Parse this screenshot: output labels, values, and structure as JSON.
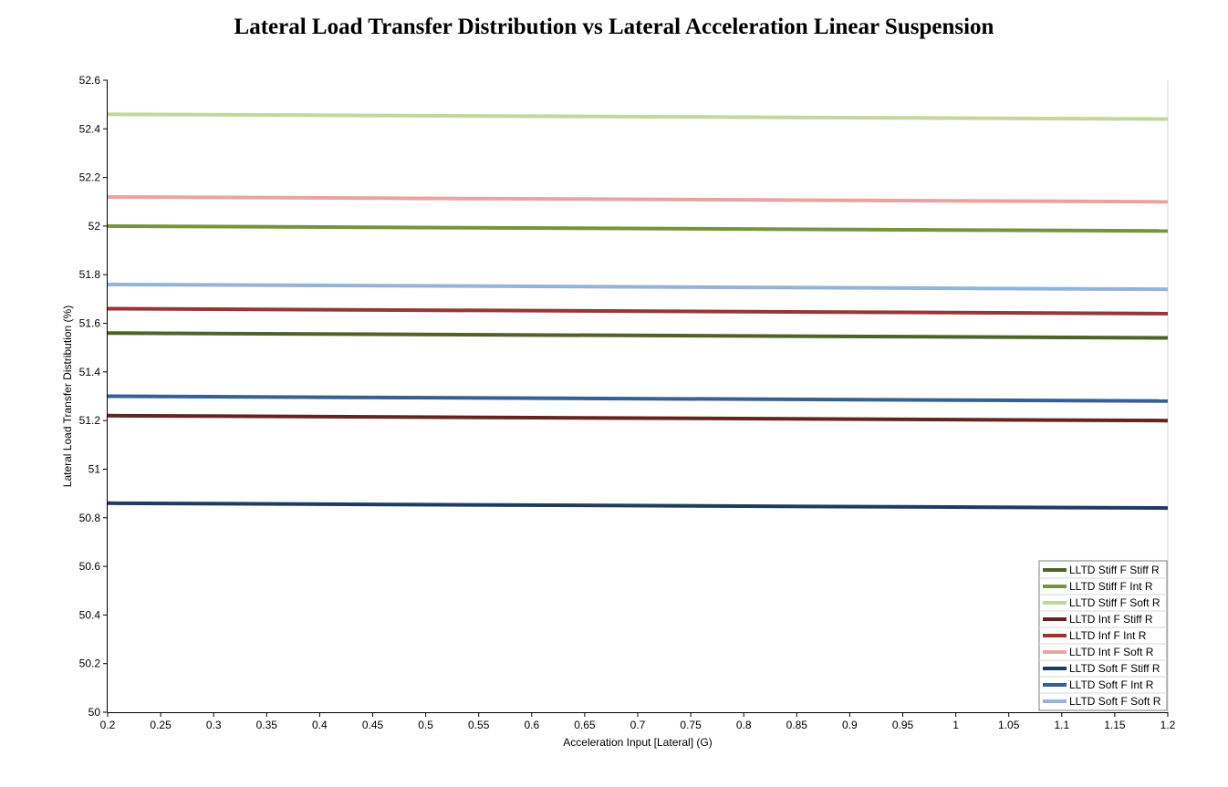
{
  "chart_data": {
    "type": "line",
    "title": "Lateral Load Transfer Distribution vs Lateral Acceleration Linear Suspension",
    "xlabel": "Acceleration Input [Lateral] (G)",
    "ylabel": "Lateral Load Transfer Distribution (%)",
    "xlim": [
      0.2,
      1.2
    ],
    "ylim": [
      50,
      52.6
    ],
    "x_ticks": [
      "0.2",
      "0.25",
      "0.3",
      "0.35",
      "0.4",
      "0.45",
      "0.5",
      "0.55",
      "0.6",
      "0.65",
      "0.7",
      "0.75",
      "0.8",
      "0.85",
      "0.9",
      "0.95",
      "1",
      "1.05",
      "1.1",
      "1.15",
      "1.2"
    ],
    "y_ticks": [
      "50",
      "50.2",
      "50.4",
      "50.6",
      "50.8",
      "51",
      "51.2",
      "51.4",
      "51.6",
      "51.8",
      "52",
      "52.2",
      "52.4",
      "52.6"
    ],
    "grid": "vertical-right-border-only",
    "legend_position": "bottom-right",
    "x": [
      0.2,
      1.2
    ],
    "series": [
      {
        "name": "LLTD Stiff F Stiff R",
        "color": "#4f6228",
        "values": [
          51.56,
          51.54
        ]
      },
      {
        "name": "LLTD Stiff F Int R",
        "color": "#77933c",
        "values": [
          52.0,
          51.98
        ]
      },
      {
        "name": "LLTD Stiff F Soft R",
        "color": "#c3d69b",
        "values": [
          52.46,
          52.44
        ]
      },
      {
        "name": "LLTD Int F Stiff R",
        "color": "#632523",
        "values": [
          51.22,
          51.2
        ]
      },
      {
        "name": "LLTD Inf F Int R",
        "color": "#953735",
        "values": [
          51.66,
          51.64
        ]
      },
      {
        "name": "LLTD Int F Soft R",
        "color": "#e6a5a3",
        "values": [
          52.12,
          52.1
        ]
      },
      {
        "name": "LLTD Soft F Stiff R",
        "color": "#1f3b5e",
        "values": [
          50.86,
          50.84
        ]
      },
      {
        "name": "LLTD Soft F Int R",
        "color": "#376092",
        "values": [
          51.3,
          51.28
        ]
      },
      {
        "name": "LLTD Soft F Soft R",
        "color": "#95b3d7",
        "values": [
          51.76,
          51.74
        ]
      }
    ]
  }
}
